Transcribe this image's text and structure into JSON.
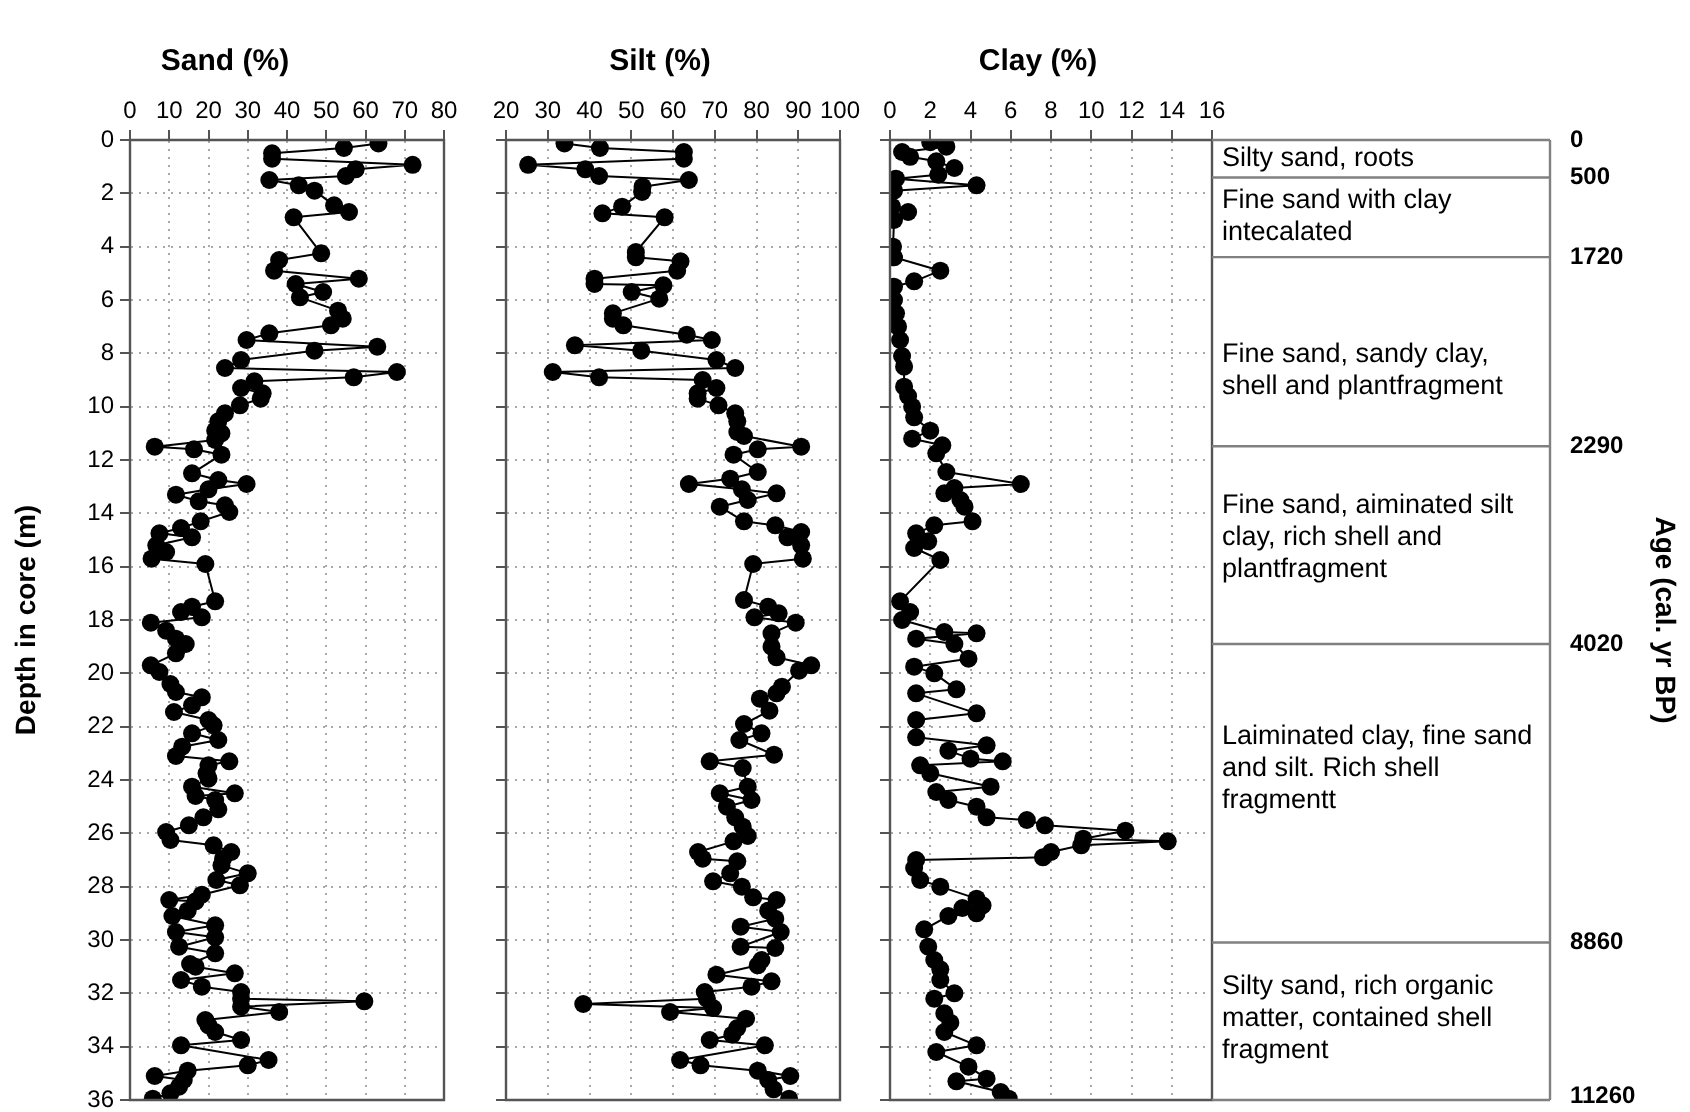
{
  "chart_data": [
    {
      "type": "line",
      "title": "Sand (%)",
      "ylabel": "Depth in core (m)",
      "xlim": [
        0,
        80
      ],
      "xticks": [
        0,
        10,
        20,
        30,
        40,
        50,
        60,
        70,
        80
      ],
      "ylim": [
        36,
        0
      ],
      "yticks": [
        0,
        2,
        4,
        6,
        8,
        10,
        12,
        14,
        16,
        18,
        20,
        22,
        24,
        26,
        28,
        30,
        32,
        34,
        36
      ],
      "grid": true,
      "marker": "circle",
      "line_style": "solid",
      "series": [
        {
          "color": "#000000",
          "x": [
            63.3,
            54.5,
            36.2,
            36.2,
            72,
            57.5,
            55,
            35.5,
            43,
            47,
            52,
            55.8,
            41.7,
            48.7,
            38,
            36.7,
            58.3,
            42.2,
            49.2,
            43.3,
            53,
            54.2,
            51.2,
            35.5,
            29.7,
            63,
            47,
            28.3,
            24.2,
            68,
            57,
            31.7,
            28.3,
            33.8,
            33.3,
            28,
            24.2,
            22.5,
            21.7,
            23.3,
            21.7,
            6.3,
            16.3,
            23.3,
            15.8,
            22.5,
            29.7,
            20,
            11.7,
            17.5,
            24.2,
            25.3,
            18,
            13,
            7.5,
            15.8,
            6.7,
            9.2,
            5.5,
            19.2,
            21.7,
            15.8,
            13,
            18.3,
            5.3,
            9.2,
            11.7,
            14.2,
            11.7,
            5.3,
            7.5,
            10.3,
            11.7,
            18.3,
            15.8,
            11.2,
            20,
            21.3,
            15.8,
            22.5,
            13.3,
            11.7,
            25.3,
            20,
            19.5,
            20,
            15.8,
            26.7,
            16.7,
            21.7,
            22.5,
            18.7,
            15,
            9.2,
            10.3,
            21.3,
            25.8,
            23.7,
            23.3,
            30,
            22,
            28,
            18.3,
            10,
            16.7,
            14.7,
            10.8,
            21.7,
            11.7,
            21.7,
            12.5,
            21.7,
            15.3,
            16.7,
            26.7,
            13,
            18.3,
            28.3,
            28.3,
            59.7,
            28.3,
            38,
            19.2,
            20,
            21.7,
            28.3,
            13,
            35.3,
            30,
            14.7,
            6.3,
            13.7,
            12.5,
            10.3,
            5.8
          ],
          "values": [
            0.13,
            0.3,
            0.5,
            0.7,
            0.93,
            1.1,
            1.35,
            1.5,
            1.7,
            1.9,
            2.45,
            2.7,
            2.9,
            4.25,
            4.5,
            4.9,
            5.2,
            5.4,
            5.7,
            5.9,
            6.4,
            6.7,
            6.95,
            7.25,
            7.5,
            7.75,
            7.9,
            8.25,
            8.55,
            8.7,
            8.9,
            9.05,
            9.3,
            9.5,
            9.7,
            9.95,
            10.25,
            10.55,
            10.9,
            11,
            11.25,
            11.5,
            11.6,
            11.8,
            12.5,
            12.75,
            12.9,
            13.1,
            13.3,
            13.55,
            13.7,
            13.95,
            14.3,
            14.55,
            14.75,
            14.9,
            15.2,
            15.45,
            15.7,
            15.9,
            17.3,
            17.5,
            17.7,
            17.9,
            18.1,
            18.4,
            18.7,
            18.9,
            19.25,
            19.7,
            19.95,
            20.4,
            20.7,
            20.9,
            21.2,
            21.45,
            21.75,
            21.95,
            22.25,
            22.5,
            22.75,
            23.1,
            23.3,
            23.45,
            23.75,
            23.95,
            24.25,
            24.5,
            24.6,
            24.75,
            25.1,
            25.4,
            25.7,
            25.95,
            26.25,
            26.45,
            26.7,
            26.95,
            27.2,
            27.5,
            27.75,
            27.95,
            28.3,
            28.5,
            28.55,
            28.9,
            29.1,
            29.45,
            29.7,
            29.9,
            30.25,
            30.5,
            30.9,
            31,
            31.25,
            31.5,
            31.75,
            31.95,
            32.2,
            32.3,
            32.5,
            32.7,
            33,
            33.2,
            33.45,
            33.75,
            33.95,
            34.5,
            34.7,
            34.9,
            35.1,
            35.25,
            35.5,
            35.75,
            35.95
          ]
        }
      ]
    },
    {
      "type": "line",
      "title": "Silt (%)",
      "xlim": [
        20,
        100
      ],
      "xticks": [
        20,
        30,
        40,
        50,
        60,
        70,
        80,
        90,
        100
      ],
      "ylim": [
        36,
        0
      ],
      "yticks": [
        0,
        2,
        4,
        6,
        8,
        10,
        12,
        14,
        16,
        18,
        20,
        22,
        24,
        26,
        28,
        30,
        32,
        34,
        36
      ],
      "grid": true,
      "marker": "circle",
      "line_style": "solid",
      "tick_labels": "x",
      "series": [
        {
          "color": "#000000",
          "x": [
            34,
            42.5,
            62.6,
            62.6,
            25.3,
            39,
            42.3,
            63.8,
            52.7,
            52.6,
            47.8,
            43.1,
            58,
            51.1,
            51.1,
            61.8,
            61,
            41.2,
            41.2,
            57.7,
            50.1,
            56.7,
            45.6,
            45.6,
            48.1,
            63.3,
            69.3,
            36.5,
            52.4,
            70.4,
            74.9,
            31.2,
            42.3,
            67.1,
            70.4,
            65.9,
            65.9,
            70.9,
            74.9,
            75.4,
            75.4,
            77,
            90.7,
            80.3,
            74.5,
            80.3,
            73.7,
            63.8,
            76.5,
            84.8,
            77.9,
            71.2,
            77,
            84.5,
            90.7,
            87.4,
            90.7,
            91.1,
            79.2,
            77,
            82.8,
            85.3,
            79.5,
            89.4,
            83.6,
            83.6,
            84.8,
            93.1,
            90.2,
            86.1,
            84.8,
            80.8,
            83.1,
            77,
            81.2,
            75.9,
            84.2,
            68.8,
            76.7,
            77.9,
            71.2,
            78.8,
            72.9,
            74.9,
            76.7,
            77.9,
            74.5,
            66,
            67.1,
            75.4,
            73.7,
            69.6,
            76.5,
            79.2,
            84.8,
            82.8,
            84.5,
            76.2,
            85.8,
            76.2,
            84.5,
            81.2,
            80.3,
            70.4,
            83.6,
            78.8,
            67.6,
            68.1,
            38.5,
            69.6,
            59.3,
            77.5,
            75.4,
            74.2,
            68.8,
            82,
            61.7,
            66.6,
            80.3,
            88.1,
            82.8,
            84.1,
            87.8
          ],
          "values": [
            0.13,
            0.3,
            0.45,
            0.7,
            0.93,
            1.1,
            1.35,
            1.5,
            1.75,
            1.95,
            2.5,
            2.75,
            2.9,
            4.2,
            4.4,
            4.55,
            4.9,
            5.2,
            5.4,
            5.45,
            5.7,
            5.95,
            6.5,
            6.7,
            6.95,
            7.3,
            7.5,
            7.7,
            7.9,
            8.25,
            8.55,
            8.7,
            8.9,
            9,
            9.3,
            9.5,
            9.7,
            9.95,
            10.25,
            10.55,
            10.95,
            11.1,
            11.5,
            11.6,
            11.8,
            12.45,
            12.7,
            12.9,
            13.1,
            13.25,
            13.5,
            13.75,
            14.3,
            14.45,
            14.7,
            14.9,
            15.2,
            15.7,
            15.9,
            17.25,
            17.5,
            17.75,
            17.9,
            18.1,
            18.5,
            19,
            19.4,
            19.7,
            19.9,
            20.5,
            20.75,
            20.95,
            21.4,
            21.9,
            22.25,
            22.5,
            23.05,
            23.3,
            23.55,
            24.25,
            24.5,
            24.75,
            25,
            25.4,
            25.75,
            26.1,
            26.3,
            26.7,
            26.95,
            27.05,
            27.5,
            27.8,
            28,
            28.4,
            28.5,
            28.9,
            29.2,
            29.5,
            29.7,
            30.25,
            30.3,
            30.75,
            30.95,
            31.3,
            31.55,
            31.75,
            31.95,
            32.2,
            32.4,
            32.55,
            32.7,
            32.95,
            33.3,
            33.55,
            33.75,
            33.95,
            34.5,
            34.7,
            34.9,
            35.1,
            35.25,
            35.6,
            35.95
          ]
        }
      ]
    },
    {
      "type": "line",
      "title": "Clay (%)",
      "xlim": [
        0,
        16
      ],
      "xticks": [
        0,
        2,
        4,
        6,
        8,
        10,
        12,
        14,
        16
      ],
      "ylim": [
        36,
        0
      ],
      "yticks": [
        0,
        2,
        4,
        6,
        8,
        10,
        12,
        14,
        16,
        18,
        20,
        22,
        24,
        26,
        28,
        30,
        32,
        34,
        36
      ],
      "grid": true,
      "marker": "circle",
      "line_style": "solid",
      "tick_labels": "x",
      "series": [
        {
          "color": "#000000",
          "x": [
            2,
            2.8,
            0.6,
            1,
            2.3,
            3.2,
            2.4,
            0.3,
            4.3,
            0.2,
            0.1,
            0.9,
            0.2,
            0.15,
            0.2,
            2.5,
            1.2,
            0.2,
            0.2,
            0.3,
            0.4,
            0.5,
            0.6,
            0.7,
            0.7,
            0.9,
            1.1,
            1.2,
            2,
            1.1,
            2.6,
            2.3,
            2.8,
            6.5,
            3.2,
            2.7,
            3.5,
            3.7,
            4.1,
            2.2,
            1.3,
            1.9,
            1.2,
            2.5,
            0.5,
            1,
            0.6,
            2.7,
            4.3,
            1.3,
            3.2,
            3.9,
            1.2,
            2.2,
            3.3,
            1.3,
            4.3,
            1.3,
            1.3,
            4.8,
            2.9,
            4,
            5.6,
            1.5,
            2,
            5,
            2.3,
            2.9,
            4.3,
            4.8,
            6.8,
            7.7,
            11.7,
            9.6,
            13.8,
            9.5,
            8,
            7.6,
            1.3,
            1.2,
            1.5,
            2.5,
            4.3,
            4.6,
            3.6,
            4.3,
            2.9,
            1.7,
            1.9,
            2.2,
            2.5,
            2.5,
            3.2,
            2.2,
            2.7,
            3,
            2.7,
            4.3,
            2.3,
            3.9,
            4.8,
            3.3,
            5.5,
            5.9
          ],
          "values": [
            0.08,
            0.25,
            0.45,
            0.63,
            0.8,
            1.05,
            1.3,
            1.45,
            1.7,
            1.9,
            2.5,
            2.7,
            3,
            4,
            4.4,
            4.9,
            5.3,
            5.5,
            6,
            6.5,
            7,
            7.5,
            8.1,
            8.5,
            9.25,
            9.6,
            10,
            10.4,
            10.9,
            11.2,
            11.45,
            11.75,
            12.45,
            12.9,
            13.05,
            13.25,
            13.5,
            13.75,
            14.3,
            14.45,
            14.75,
            15.05,
            15.3,
            15.75,
            17.3,
            17.7,
            18,
            18.45,
            18.5,
            18.7,
            18.9,
            19.45,
            19.75,
            20,
            20.6,
            20.75,
            21.5,
            21.75,
            22.4,
            22.7,
            22.9,
            23.2,
            23.3,
            23.45,
            23.75,
            24.25,
            24.45,
            24.75,
            25,
            25.4,
            25.5,
            25.7,
            25.9,
            26.2,
            26.3,
            26.45,
            26.7,
            26.9,
            27,
            27.3,
            27.75,
            28,
            28.45,
            28.7,
            28.8,
            29,
            29.1,
            29.6,
            30.25,
            30.75,
            31.1,
            31.5,
            32,
            32.2,
            32.75,
            33.1,
            33.45,
            33.95,
            34.2,
            34.75,
            35.2,
            35.3,
            35.7,
            35.95
          ]
        }
      ]
    },
    {
      "type": "other",
      "y2label": "Age (cal. yr BP)",
      "annotations": [
        "Silty sand, roots",
        "Fine sand with clay intecalated",
        "Fine sand, sandy clay, shell and plantfragment",
        "Fine sand, aiminated silt clay, rich shell and plantfragment",
        "Laiminated clay, fine sand and silt. Rich shell fragmentt",
        "Silty sand, rich organic matter, contained shell fragment",
        "0",
        "500",
        "1720",
        "2290",
        "4020",
        "8860",
        "11260"
      ]
    }
  ]
}
